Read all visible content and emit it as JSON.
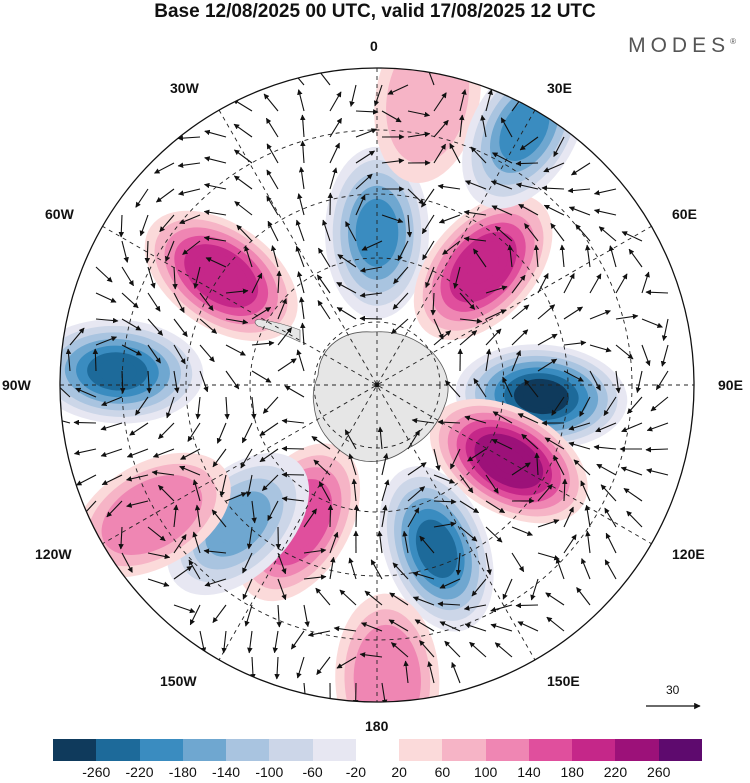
{
  "title": "Base 12/08/2025 00 UTC, valid 17/08/2025 12 UTC",
  "brand": "MODES",
  "brand_mark": "®",
  "longitude_labels": {
    "top": "0",
    "lon30e": "30E",
    "lon60e": "60E",
    "lon90e": "90E",
    "lon120e": "120E",
    "lon150e": "150E",
    "bottom": "180",
    "lon150w": "150W",
    "lon120w": "120W",
    "lon90w": "90W",
    "lon60w": "60W",
    "lon30w": "30W"
  },
  "vector_reference": "30",
  "colorbar": {
    "colors": [
      "#0f3a5c",
      "#1d6a9a",
      "#3a8cc0",
      "#6fa7d0",
      "#a9c4e0",
      "#ccd6e8",
      "#e7e7f2",
      "#ffffff",
      "#fbdada",
      "#f6b4c6",
      "#ef86b3",
      "#e04f9d",
      "#c52789",
      "#9c1179",
      "#5e0a6e"
    ],
    "ticks": [
      "-260",
      "-220",
      "-180",
      "-140",
      "-100",
      "-60",
      "-20",
      "20",
      "60",
      "100",
      "140",
      "180",
      "220",
      "260"
    ]
  },
  "anomaly_centers": [
    {
      "kind": "low",
      "value": -260,
      "lon": 94,
      "lat_ring": 0.52
    },
    {
      "kind": "high",
      "value": 260,
      "lon": 120,
      "lat_ring": 0.48
    },
    {
      "kind": "low",
      "value": -220,
      "lon": 160,
      "lat_ring": 0.55
    },
    {
      "kind": "high",
      "value": 180,
      "lon": 210,
      "lat_ring": 0.5
    },
    {
      "kind": "high",
      "value": 140,
      "lon": 178,
      "lat_ring": 0.93
    },
    {
      "kind": "low",
      "value": -140,
      "lon": 225,
      "lat_ring": 0.62
    },
    {
      "kind": "high",
      "value": 140,
      "lon": 240,
      "lat_ring": 0.82
    },
    {
      "kind": "low",
      "value": -220,
      "lon": 273,
      "lat_ring": 0.82
    },
    {
      "kind": "high",
      "value": 220,
      "lon": 305,
      "lat_ring": 0.6
    },
    {
      "kind": "low",
      "value": -180,
      "lon": 0,
      "lat_ring": 0.48
    },
    {
      "kind": "high",
      "value": 220,
      "lon": 42,
      "lat_ring": 0.5
    },
    {
      "kind": "high",
      "value": 100,
      "lon": 10,
      "lat_ring": 0.92
    },
    {
      "kind": "low",
      "value": -180,
      "lon": 30,
      "lat_ring": 0.93
    }
  ]
}
